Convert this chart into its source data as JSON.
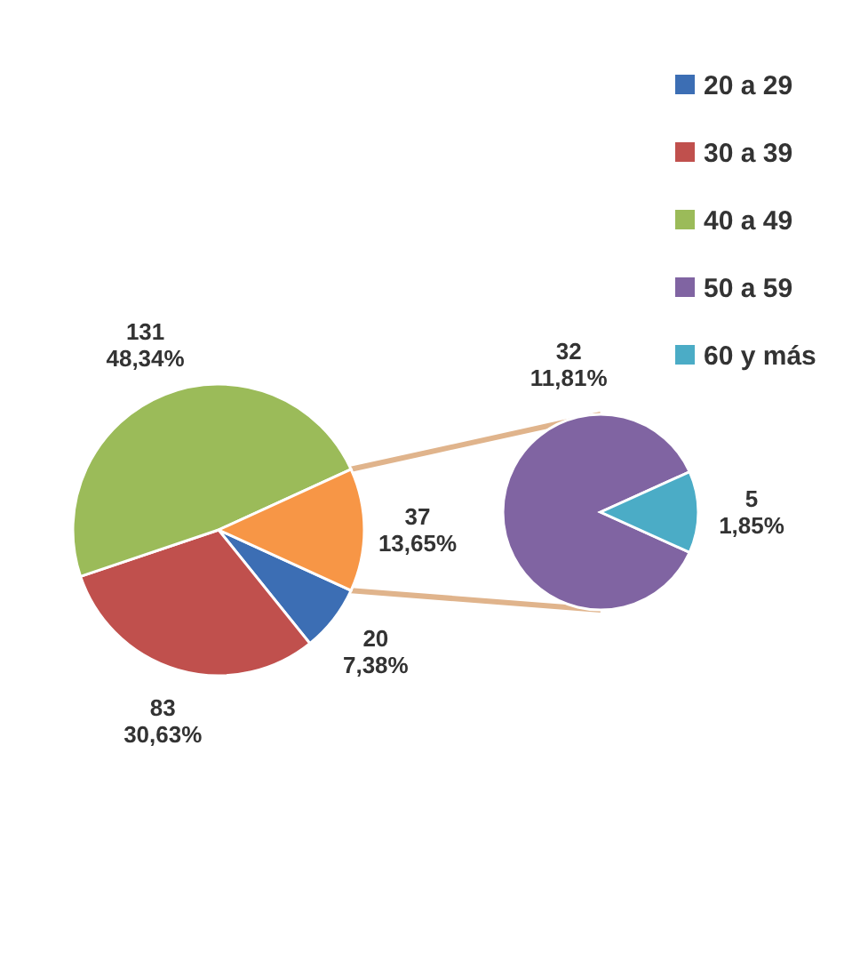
{
  "chart_data": [
    {
      "type": "pie",
      "categories": [
        "20 a 29",
        "30 a 39",
        "40 a 49",
        null
      ],
      "values": [
        20,
        83,
        131,
        37
      ],
      "colors": [
        "#3c6eb4",
        "#c0504d",
        "#9bbb59",
        "#f79646"
      ],
      "value_labels": [
        "20\n7,38%",
        "83\n30,63%",
        "131\n48,34%",
        "37\n13,65%"
      ],
      "legend": "right"
    },
    {
      "type": "pie",
      "categories": [
        "50 a 59",
        "60 y más"
      ],
      "values": [
        32,
        5
      ],
      "colors": [
        "#8064a2",
        "#4bacc6"
      ],
      "value_labels": [
        "32\n11,81%",
        "5\n1,85%"
      ],
      "legend": "right"
    }
  ]
}
